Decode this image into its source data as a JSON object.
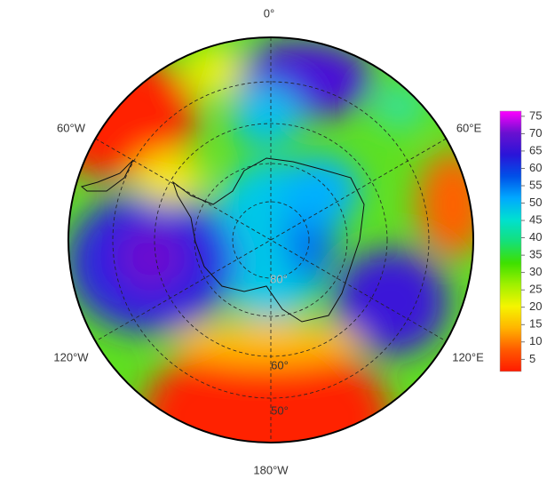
{
  "map": {
    "longitude_labels": [
      "0°",
      "60°E",
      "120°E",
      "180°W",
      "120°W",
      "60°W"
    ],
    "latitude_labels": [
      "80°",
      "60°",
      "50°"
    ],
    "colorbar": {
      "range": [
        1.5,
        76.5
      ],
      "ticks": [
        5,
        10,
        15,
        20,
        25,
        30,
        35,
        40,
        45,
        50,
        55,
        60,
        65,
        70,
        75
      ],
      "colormap": [
        "#ff1a00",
        "#ff5a00",
        "#ffb400",
        "#f5f500",
        "#a0f000",
        "#3ee000",
        "#14e07a",
        "#00e0d0",
        "#00a8ff",
        "#0050e8",
        "#2a14d8",
        "#6a10d0",
        "#ff00ff"
      ]
    }
  }
}
